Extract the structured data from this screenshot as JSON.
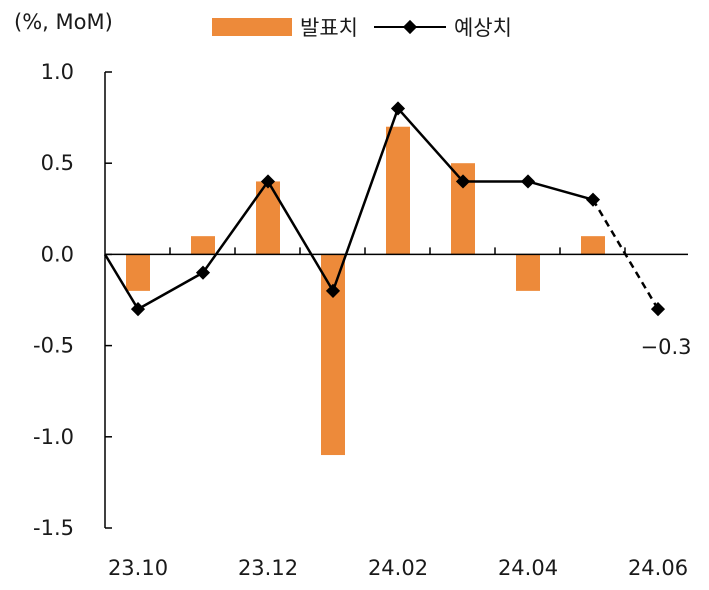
{
  "chart_data": {
    "type": "bar",
    "ylabel": "(%, MoM)",
    "ylim": [
      -1.5,
      1.0
    ],
    "yticks": [
      "1.0",
      "0.5",
      "0.0",
      "-0.5",
      "-1.0",
      "-1.5"
    ],
    "ytick_values": [
      1.0,
      0.5,
      0.0,
      -0.5,
      -1.0,
      -1.5
    ],
    "categories": [
      "23.10",
      "23.11",
      "23.12",
      "24.01",
      "24.02",
      "24.03",
      "24.04",
      "24.05",
      "24.06"
    ],
    "xtick_labels": [
      "23.10",
      "23.12",
      "24.02",
      "24.04",
      "24.06"
    ],
    "series": [
      {
        "name": "발표치",
        "type": "bar",
        "color": "#ED8A3A",
        "values": [
          -0.2,
          0.1,
          0.4,
          -1.1,
          0.7,
          0.5,
          -0.2,
          0.1,
          null
        ]
      },
      {
        "name": "예상치",
        "type": "line",
        "color": "#000000",
        "values": [
          -0.3,
          -0.1,
          0.4,
          -0.2,
          0.8,
          0.4,
          0.4,
          0.3,
          -0.3
        ],
        "dashed_last_segment": true
      }
    ],
    "annotation": "−0.3"
  }
}
